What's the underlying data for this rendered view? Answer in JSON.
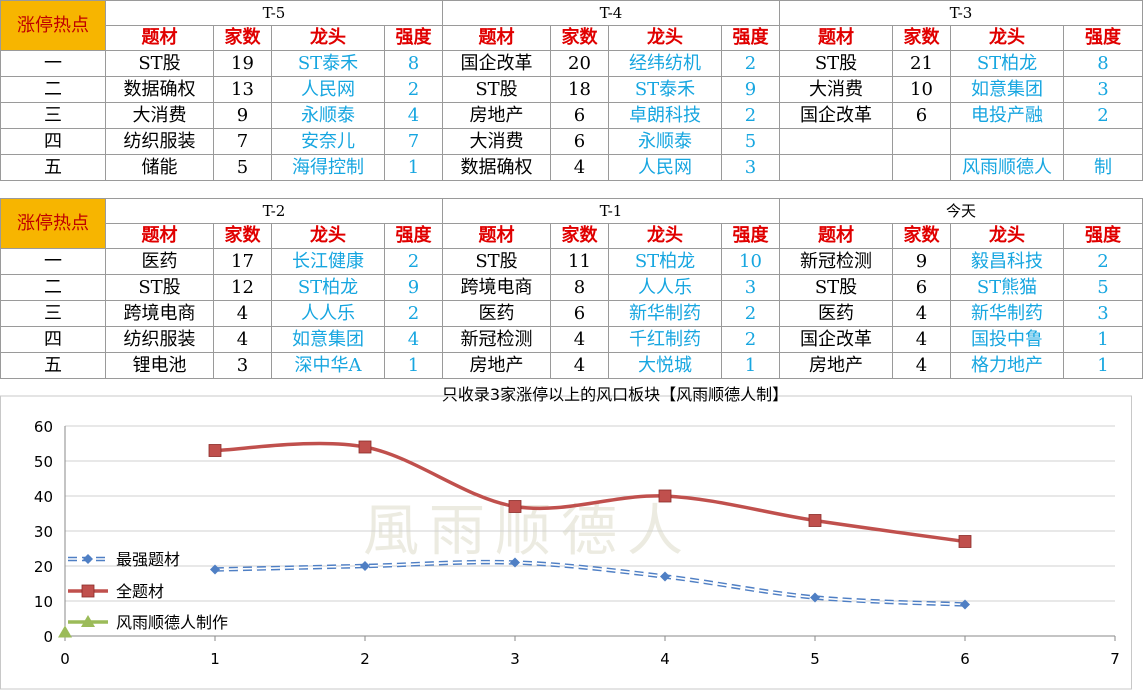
{
  "badge_label": "涨停热点",
  "column_labels": [
    "题材",
    "家数",
    "龙头",
    "强度"
  ],
  "rank_labels": [
    "一",
    "二",
    "三",
    "四",
    "五"
  ],
  "blocks": [
    {
      "periods": [
        {
          "name": "T-5",
          "rows": [
            [
              "ST股",
              "19",
              "ST泰禾",
              "8"
            ],
            [
              "数据确权",
              "13",
              "人民网",
              "2"
            ],
            [
              "大消费",
              "9",
              "永顺泰",
              "4"
            ],
            [
              "纺织服装",
              "7",
              "安奈儿",
              "7"
            ],
            [
              "储能",
              "5",
              "海得控制",
              "1"
            ]
          ]
        },
        {
          "name": "T-4",
          "rows": [
            [
              "国企改革",
              "20",
              "经纬纺机",
              "2"
            ],
            [
              "ST股",
              "18",
              "ST泰禾",
              "9"
            ],
            [
              "房地产",
              "6",
              "卓朗科技",
              "2"
            ],
            [
              "大消费",
              "6",
              "永顺泰",
              "5"
            ],
            [
              "数据确权",
              "4",
              "人民网",
              "3"
            ]
          ]
        },
        {
          "name": "T-3",
          "rows": [
            [
              "ST股",
              "21",
              "ST柏龙",
              "8"
            ],
            [
              "大消费",
              "10",
              "如意集团",
              "3"
            ],
            [
              "国企改革",
              "6",
              "电投产融",
              "2"
            ],
            [
              "",
              "",
              "",
              ""
            ],
            [
              "",
              "",
              "风雨顺德人",
              "制"
            ]
          ]
        }
      ]
    },
    {
      "periods": [
        {
          "name": "T-2",
          "rows": [
            [
              "医药",
              "17",
              "长江健康",
              "2"
            ],
            [
              "ST股",
              "12",
              "ST柏龙",
              "9"
            ],
            [
              "跨境电商",
              "4",
              "人人乐",
              "2"
            ],
            [
              "纺织服装",
              "4",
              "如意集团",
              "4"
            ],
            [
              "锂电池",
              "3",
              "深中华A",
              "1"
            ]
          ]
        },
        {
          "name": "T-1",
          "rows": [
            [
              "ST股",
              "11",
              "ST柏龙",
              "10"
            ],
            [
              "跨境电商",
              "8",
              "人人乐",
              "3"
            ],
            [
              "医药",
              "6",
              "新华制药",
              "2"
            ],
            [
              "新冠检测",
              "4",
              "千红制药",
              "2"
            ],
            [
              "房地产",
              "4",
              "大悦城",
              "1"
            ]
          ]
        },
        {
          "name": "今天",
          "rows": [
            [
              "新冠检测",
              "9",
              "毅昌科技",
              "2"
            ],
            [
              "ST股",
              "6",
              "ST熊猫",
              "5"
            ],
            [
              "医药",
              "4",
              "新华制药",
              "3"
            ],
            [
              "国企改革",
              "4",
              "国投中鲁",
              "1"
            ],
            [
              "房地产",
              "4",
              "格力地产",
              "1"
            ]
          ]
        }
      ]
    }
  ],
  "chart_data": {
    "type": "line",
    "title": "只收录3家涨停以上的风口板块【风雨顺德人制】",
    "watermark": "風雨顺德人",
    "xlim": [
      0,
      7
    ],
    "ylim": [
      0,
      60
    ],
    "xticks": [
      0,
      1,
      2,
      3,
      4,
      5,
      6,
      7
    ],
    "yticks": [
      0,
      10,
      20,
      30,
      40,
      50,
      60
    ],
    "grid": "horizontal",
    "legend_position": "left-bottom",
    "series": [
      {
        "name": "最强题材",
        "x": [
          1,
          2,
          3,
          4,
          5,
          6
        ],
        "values": [
          19,
          20,
          21,
          17,
          11,
          9
        ],
        "color": "#4f7fc4",
        "style": "dashed",
        "marker": "diamond"
      },
      {
        "name": "全题材",
        "x": [
          1,
          2,
          3,
          4,
          5,
          6
        ],
        "values": [
          53,
          54,
          37,
          40,
          33,
          27
        ],
        "color": "#c0504d",
        "style": "solid",
        "marker": "square"
      },
      {
        "name": "风雨顺德人制作",
        "x": [
          0
        ],
        "values": [
          1
        ],
        "color": "#9bbb59",
        "style": "solid",
        "marker": "triangle"
      }
    ]
  }
}
